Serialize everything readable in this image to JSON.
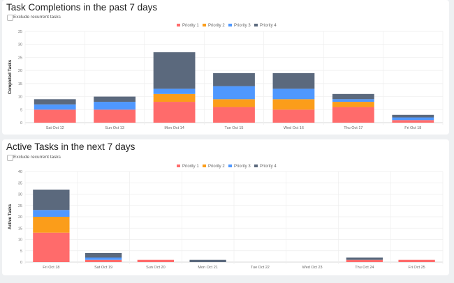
{
  "legend": {
    "colors": {
      "Priority 1": "#ff6b6b",
      "Priority 2": "#fb9d1a",
      "Priority 3": "#4f98ff",
      "Priority 4": "#5b697d"
    }
  },
  "chart_data": [
    {
      "type": "bar",
      "stacked": true,
      "title": "Task Completions in the past 7 days",
      "checkbox_label": "Exclude recurrent tasks",
      "ylabel": "Completed Tasks",
      "ylim": [
        0,
        35
      ],
      "yticks": [
        0,
        5,
        10,
        15,
        20,
        25,
        30,
        35
      ],
      "grid": true,
      "legend_position": "top",
      "categories": [
        "Sat Oct 12",
        "Sun Oct 13",
        "Mon Oct 14",
        "Tue Oct 15",
        "Wed Oct 16",
        "Thu Oct 17",
        "Fri Oct 18"
      ],
      "series": [
        {
          "name": "Priority 1",
          "values": [
            5,
            5,
            8,
            6,
            5,
            6,
            1
          ]
        },
        {
          "name": "Priority 2",
          "values": [
            0,
            0,
            3,
            3,
            4,
            2,
            0
          ]
        },
        {
          "name": "Priority 3",
          "values": [
            2,
            3,
            2,
            5,
            4,
            1,
            1
          ]
        },
        {
          "name": "Priority 4",
          "values": [
            2,
            2,
            14,
            5,
            6,
            2,
            1
          ]
        }
      ]
    },
    {
      "type": "bar",
      "stacked": true,
      "title": "Active Tasks in the next 7 days",
      "checkbox_label": "Exclude recurrent tasks",
      "ylabel": "Active Tasks",
      "ylim": [
        0,
        40
      ],
      "yticks": [
        0,
        5,
        10,
        15,
        20,
        25,
        30,
        35,
        40
      ],
      "grid": true,
      "legend_position": "top",
      "categories": [
        "Fri Oct 18",
        "Sat Oct 19",
        "Sun Oct 20",
        "Mon Oct 21",
        "Tue Oct 22",
        "Wed Oct 23",
        "Thu Oct 24",
        "Fri Oct 25"
      ],
      "series": [
        {
          "name": "Priority 1",
          "values": [
            13,
            1,
            1,
            0,
            0,
            0,
            1,
            1
          ]
        },
        {
          "name": "Priority 2",
          "values": [
            7,
            0,
            0,
            0,
            0,
            0,
            0,
            0
          ]
        },
        {
          "name": "Priority 3",
          "values": [
            3,
            1,
            0,
            0,
            0,
            0,
            0,
            0
          ]
        },
        {
          "name": "Priority 4",
          "values": [
            9,
            2,
            0,
            1,
            0,
            0,
            1,
            0
          ]
        }
      ]
    }
  ]
}
